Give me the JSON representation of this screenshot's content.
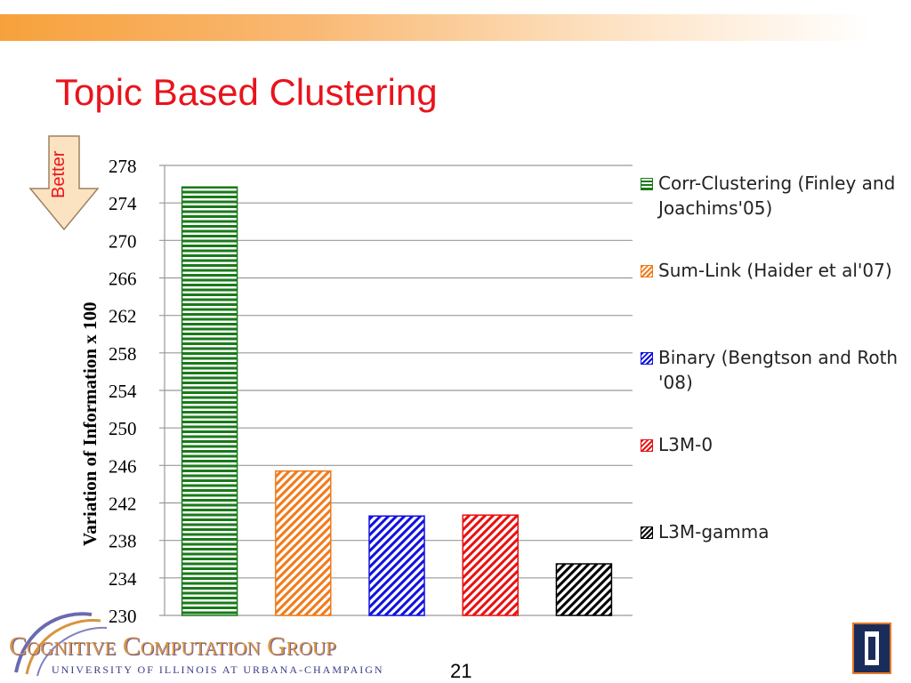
{
  "slide": {
    "title": "Topic Based Clustering",
    "page_number": "21",
    "better_label": "Better"
  },
  "logo": {
    "main": "Cognitive Computation Group",
    "sub": "UNIVERSITY OF ILLINOIS AT URBANA-CHAMPAIGN"
  },
  "chart_data": {
    "type": "bar",
    "title": "",
    "xlabel": "",
    "ylabel": "Variation of Information x 100",
    "ylim": [
      230,
      278
    ],
    "yticks": [
      230,
      234,
      238,
      242,
      246,
      250,
      254,
      258,
      262,
      266,
      270,
      274,
      278
    ],
    "grid": true,
    "legend_position": "right",
    "series": [
      {
        "name": "Corr-Clustering (Finley and Joachims'05)",
        "value": 275.7,
        "color": "#1a7a1a",
        "pattern": "horizontal"
      },
      {
        "name": "Sum-Link (Haider et al'07)",
        "value": 245.4,
        "color": "#f07a1a",
        "pattern": "diagonal"
      },
      {
        "name": "Binary (Bengtson and Roth '08)",
        "value": 240.6,
        "color": "#1010e0",
        "pattern": "diagonal"
      },
      {
        "name": "L3M-0",
        "value": 240.7,
        "color": "#e81010",
        "pattern": "diagonal"
      },
      {
        "name": "L3M-gamma",
        "value": 235.5,
        "color": "#000000",
        "pattern": "diagonal"
      }
    ]
  }
}
